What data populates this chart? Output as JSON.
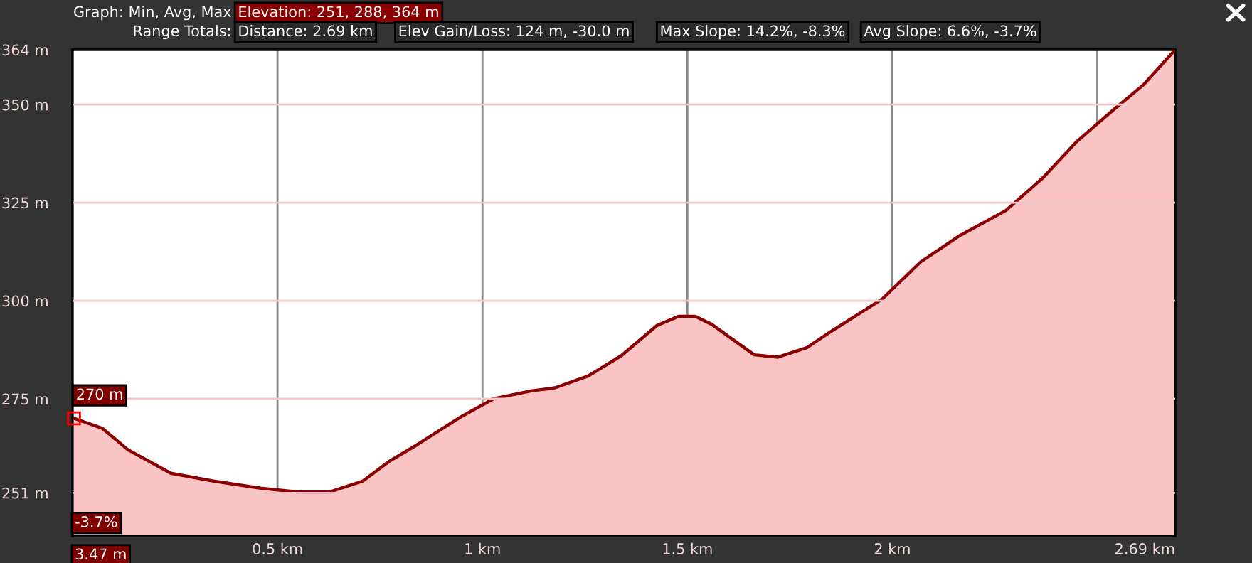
{
  "chart_data": {
    "type": "area",
    "annotations": [
      "Graph: Min, Avg, Max",
      "Elevation: 251, 288, 364 m",
      "Range Totals:",
      "Distance: 2.69 km",
      "Elev Gain/Loss: 124 m, -30.0 m",
      "Max Slope: 14.2%, -8.3%",
      "Avg Slope: 6.6%, -3.7%",
      {
        "text": "270 m",
        "x": 0.00347,
        "y": 270
      },
      "-3.7%",
      "3.47 m"
    ],
    "x": [
      0.00347,
      0.072,
      0.135,
      0.24,
      0.344,
      0.459,
      0.552,
      0.627,
      0.708,
      0.772,
      0.841,
      0.946,
      1.027,
      1.119,
      1.177,
      1.258,
      1.339,
      1.426,
      1.478,
      1.519,
      1.559,
      1.663,
      1.721,
      1.791,
      1.848,
      1.976,
      2.068,
      2.161,
      2.277,
      2.369,
      2.45,
      2.543,
      2.612,
      2.69
    ],
    "series": [
      {
        "color": "#8b0000",
        "values": [
          270,
          267.5,
          262,
          256,
          254,
          252.2,
          251.2,
          251.2,
          254,
          259,
          263.3,
          270.3,
          275,
          277,
          277.8,
          280.8,
          286,
          293.7,
          296,
          296,
          294,
          286.2,
          285.6,
          288,
          292,
          300.5,
          309.8,
          316.4,
          323,
          331.5,
          340.6,
          349,
          355,
          364
        ]
      }
    ],
    "xlim": [
      0,
      2.69
    ],
    "xticks": [
      {
        "value": 0.5,
        "label": "0.5 km"
      },
      {
        "value": 1,
        "label": "1 km"
      },
      {
        "value": 1.5,
        "label": "1.5 km"
      },
      {
        "value": 2,
        "label": "2 km"
      },
      {
        "value": 2.5,
        "label": null
      },
      {
        "value": 2.69,
        "label": "2.69 km"
      }
    ],
    "ylim": [
      240,
      364
    ],
    "yticks": [
      {
        "value": 251,
        "label": "251 m"
      },
      {
        "value": 275,
        "label": "275 m"
      },
      {
        "value": 300,
        "label": "300 m"
      },
      {
        "value": 325,
        "label": "325 m"
      },
      {
        "value": 350,
        "label": "350 m"
      },
      {
        "value": 364,
        "label": "364 m"
      }
    ],
    "grid": true
  }
}
